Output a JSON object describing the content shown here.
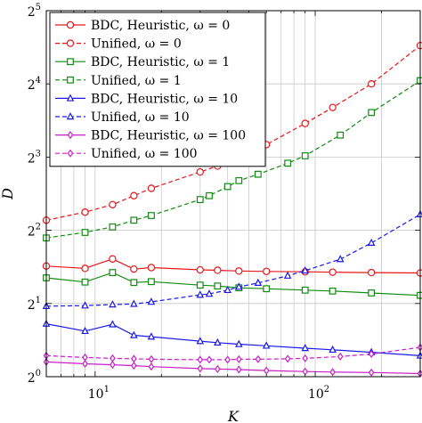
{
  "chart_data": {
    "type": "line",
    "title": "",
    "xlabel": "K",
    "ylabel": "D",
    "x_scale": "log",
    "y_scale": "log2",
    "xlim": [
      6,
      300
    ],
    "ylim": [
      1,
      32
    ],
    "x_ticks": [
      {
        "value": 10,
        "base": "10",
        "exp": "1"
      },
      {
        "value": 100,
        "base": "10",
        "exp": "2"
      }
    ],
    "y_ticks": [
      {
        "value": 1,
        "base": "2",
        "exp": "0"
      },
      {
        "value": 2,
        "base": "2",
        "exp": "1"
      },
      {
        "value": 4,
        "base": "2",
        "exp": "2"
      },
      {
        "value": 8,
        "base": "2",
        "exp": "3"
      },
      {
        "value": 16,
        "base": "2",
        "exp": "4"
      },
      {
        "value": 32,
        "base": "2",
        "exp": "5"
      }
    ],
    "grid": true,
    "legend_position": "top-left",
    "series": [
      {
        "name": "BDC, Heuristic, ω = 0",
        "color": "#e8161a",
        "marker": "circle",
        "dashed": false,
        "x": [
          6,
          9,
          12,
          15,
          18,
          30,
          36,
          45,
          60,
          90,
          120,
          180,
          300
        ],
        "y": [
          2.85,
          2.79,
          3.05,
          2.77,
          2.81,
          2.75,
          2.74,
          2.72,
          2.71,
          2.7,
          2.69,
          2.68,
          2.67
        ]
      },
      {
        "name": "Unified, ω = 0",
        "color": "#e8161a",
        "marker": "circle",
        "dashed": true,
        "x": [
          6,
          9,
          12,
          15,
          18,
          30,
          36,
          45,
          60,
          90,
          120,
          180,
          300
        ],
        "y": [
          4.4,
          4.75,
          5.1,
          5.55,
          5.95,
          6.95,
          7.35,
          8.1,
          9.0,
          11.0,
          12.8,
          16.0,
          23.0
        ]
      },
      {
        "name": "BDC, Heuristic, ω = 1",
        "color": "#0f8c0f",
        "marker": "square",
        "dashed": false,
        "x": [
          6,
          9,
          12,
          15,
          18,
          30,
          36,
          45,
          60,
          90,
          120,
          180,
          300
        ],
        "y": [
          2.55,
          2.45,
          2.68,
          2.44,
          2.46,
          2.38,
          2.36,
          2.32,
          2.3,
          2.27,
          2.25,
          2.21,
          2.16
        ]
      },
      {
        "name": "Unified, ω = 1",
        "color": "#0f8c0f",
        "marker": "square",
        "dashed": true,
        "x": [
          6,
          9,
          12,
          15,
          18,
          30,
          33,
          40,
          45,
          55,
          75,
          90,
          130,
          180,
          300
        ],
        "y": [
          3.72,
          3.92,
          4.13,
          4.4,
          4.6,
          5.35,
          5.55,
          6.05,
          6.4,
          6.8,
          7.55,
          8.1,
          9.85,
          12.2,
          16.5
        ]
      },
      {
        "name": "BDC, Heuristic, ω = 10",
        "color": "#1a1ae8",
        "marker": "triangle",
        "dashed": false,
        "x": [
          6,
          9,
          12,
          15,
          18,
          30,
          36,
          45,
          60,
          90,
          120,
          180,
          300
        ],
        "y": [
          1.65,
          1.54,
          1.64,
          1.48,
          1.46,
          1.4,
          1.38,
          1.36,
          1.34,
          1.31,
          1.29,
          1.26,
          1.22
        ]
      },
      {
        "name": "Unified, ω = 10",
        "color": "#1a1ae8",
        "marker": "triangle",
        "dashed": true,
        "x": [
          6,
          9,
          12,
          15,
          18,
          30,
          33,
          40,
          45,
          55,
          75,
          90,
          130,
          180,
          300
        ],
        "y": [
          1.95,
          1.96,
          1.98,
          1.99,
          2.03,
          2.17,
          2.19,
          2.27,
          2.34,
          2.43,
          2.6,
          2.73,
          3.04,
          3.55,
          4.65
        ]
      },
      {
        "name": "BDC, Heuristic, ω = 100",
        "color": "#c81ec8",
        "marker": "diamond",
        "dashed": false,
        "x": [
          6,
          9,
          12,
          15,
          18,
          30,
          36,
          45,
          60,
          90,
          120,
          180,
          300
        ],
        "y": [
          1.15,
          1.13,
          1.12,
          1.11,
          1.1,
          1.08,
          1.075,
          1.07,
          1.06,
          1.05,
          1.045,
          1.04,
          1.03
        ]
      },
      {
        "name": "Unified, ω = 100",
        "color": "#c81ec8",
        "marker": "diamond",
        "dashed": true,
        "x": [
          6,
          9,
          12,
          15,
          18,
          30,
          33,
          40,
          45,
          55,
          75,
          90,
          130,
          180,
          300
        ],
        "y": [
          1.22,
          1.2,
          1.19,
          1.185,
          1.18,
          1.175,
          1.175,
          1.175,
          1.18,
          1.18,
          1.185,
          1.19,
          1.21,
          1.24,
          1.32
        ]
      }
    ]
  }
}
